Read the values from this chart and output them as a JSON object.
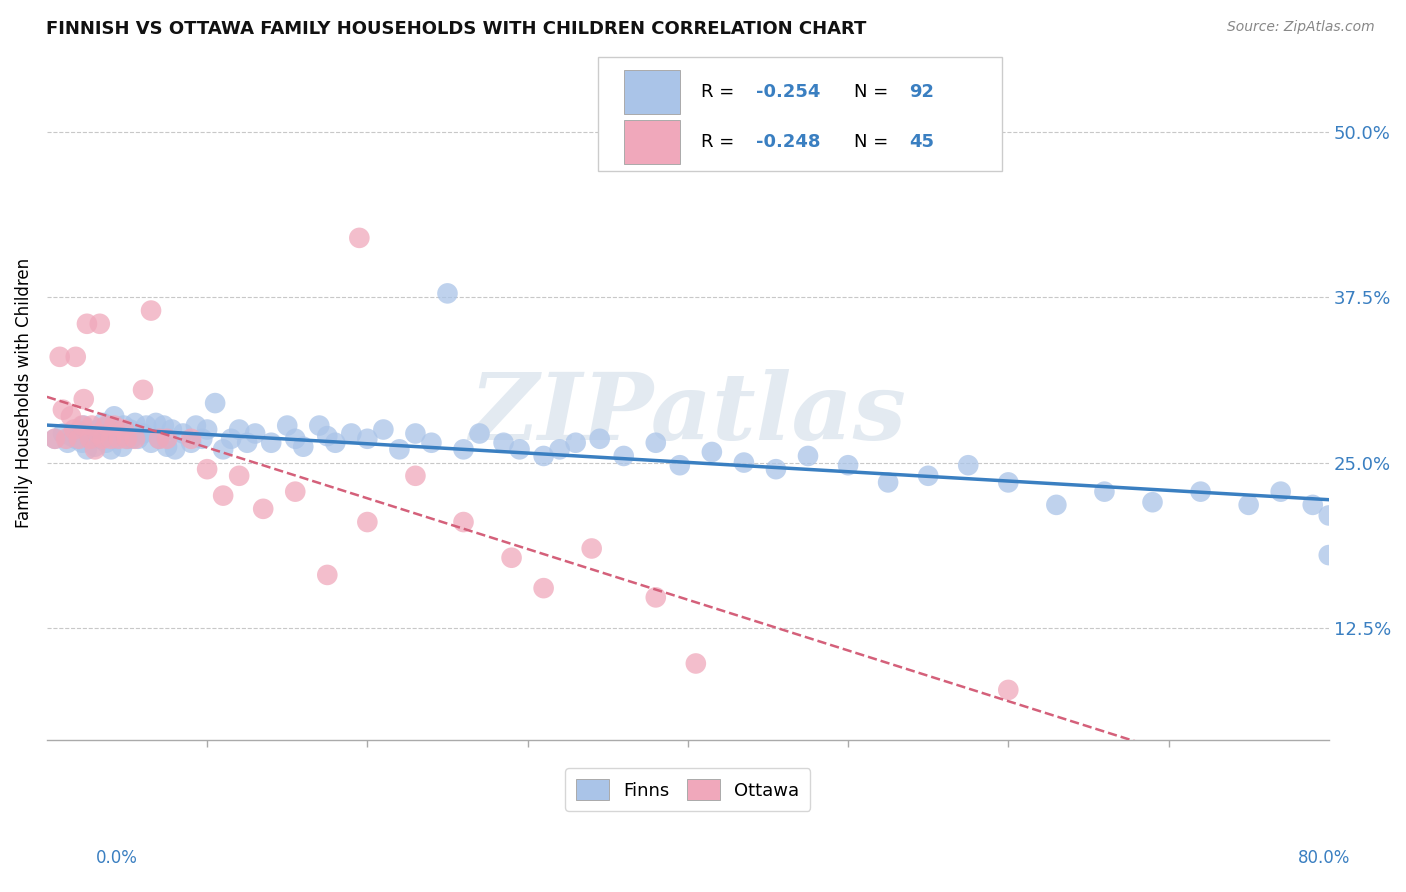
{
  "title": "FINNISH VS OTTAWA FAMILY HOUSEHOLDS WITH CHILDREN CORRELATION CHART",
  "source": "Source: ZipAtlas.com",
  "ylabel": "Family Households with Children",
  "yticks": [
    0.125,
    0.25,
    0.375,
    0.5
  ],
  "ytick_labels": [
    "12.5%",
    "25.0%",
    "37.5%",
    "50.0%"
  ],
  "xlim": [
    0.0,
    0.8
  ],
  "ylim": [
    0.04,
    0.565
  ],
  "finns_R": -0.254,
  "finns_N": 92,
  "ottawa_R": -0.248,
  "ottawa_N": 45,
  "finns_color": "#aac4e8",
  "ottawa_color": "#f0a8bb",
  "finns_line_color": "#3a7fc1",
  "ottawa_line_color": "#d4607a",
  "background_color": "#ffffff",
  "grid_color": "#c8c8c8",
  "watermark": "ZIPatlas",
  "legend_finns_label": "Finns",
  "legend_ottawa_label": "Ottawa",
  "finns_x": [
    0.005,
    0.01,
    0.013,
    0.015,
    0.018,
    0.02,
    0.022,
    0.023,
    0.025,
    0.027,
    0.028,
    0.03,
    0.032,
    0.033,
    0.035,
    0.037,
    0.038,
    0.04,
    0.04,
    0.042,
    0.043,
    0.045,
    0.047,
    0.048,
    0.05,
    0.052,
    0.053,
    0.055,
    0.057,
    0.06,
    0.062,
    0.065,
    0.068,
    0.07,
    0.073,
    0.075,
    0.078,
    0.08,
    0.085,
    0.09,
    0.093,
    0.097,
    0.1,
    0.105,
    0.11,
    0.115,
    0.12,
    0.125,
    0.13,
    0.14,
    0.15,
    0.155,
    0.16,
    0.17,
    0.175,
    0.18,
    0.19,
    0.2,
    0.21,
    0.22,
    0.23,
    0.24,
    0.25,
    0.26,
    0.27,
    0.285,
    0.295,
    0.31,
    0.32,
    0.33,
    0.345,
    0.36,
    0.38,
    0.395,
    0.415,
    0.435,
    0.455,
    0.475,
    0.5,
    0.525,
    0.55,
    0.575,
    0.6,
    0.63,
    0.66,
    0.69,
    0.72,
    0.75,
    0.77,
    0.79,
    0.8,
    0.8
  ],
  "finns_y": [
    0.268,
    0.272,
    0.265,
    0.27,
    0.268,
    0.274,
    0.265,
    0.278,
    0.26,
    0.272,
    0.268,
    0.262,
    0.275,
    0.268,
    0.28,
    0.265,
    0.278,
    0.27,
    0.26,
    0.285,
    0.268,
    0.275,
    0.262,
    0.278,
    0.268,
    0.275,
    0.268,
    0.28,
    0.268,
    0.272,
    0.278,
    0.265,
    0.28,
    0.268,
    0.278,
    0.262,
    0.275,
    0.26,
    0.272,
    0.265,
    0.278,
    0.268,
    0.275,
    0.295,
    0.26,
    0.268,
    0.275,
    0.265,
    0.272,
    0.265,
    0.278,
    0.268,
    0.262,
    0.278,
    0.27,
    0.265,
    0.272,
    0.268,
    0.275,
    0.26,
    0.272,
    0.265,
    0.378,
    0.26,
    0.272,
    0.265,
    0.26,
    0.255,
    0.26,
    0.265,
    0.268,
    0.255,
    0.265,
    0.248,
    0.258,
    0.25,
    0.245,
    0.255,
    0.248,
    0.235,
    0.24,
    0.248,
    0.235,
    0.218,
    0.228,
    0.22,
    0.228,
    0.218,
    0.228,
    0.218,
    0.18,
    0.21
  ],
  "ottawa_x": [
    0.005,
    0.008,
    0.01,
    0.012,
    0.015,
    0.017,
    0.018,
    0.02,
    0.022,
    0.023,
    0.025,
    0.027,
    0.028,
    0.03,
    0.032,
    0.033,
    0.035,
    0.037,
    0.04,
    0.042,
    0.045,
    0.048,
    0.05,
    0.055,
    0.06,
    0.065,
    0.07,
    0.075,
    0.09,
    0.1,
    0.11,
    0.12,
    0.135,
    0.155,
    0.175,
    0.2,
    0.23,
    0.195,
    0.26,
    0.29,
    0.31,
    0.34,
    0.38,
    0.405,
    0.6
  ],
  "ottawa_y": [
    0.268,
    0.33,
    0.29,
    0.268,
    0.285,
    0.275,
    0.33,
    0.268,
    0.278,
    0.298,
    0.355,
    0.268,
    0.278,
    0.26,
    0.272,
    0.355,
    0.268,
    0.278,
    0.268,
    0.278,
    0.268,
    0.275,
    0.268,
    0.268,
    0.305,
    0.365,
    0.268,
    0.268,
    0.268,
    0.245,
    0.225,
    0.24,
    0.215,
    0.228,
    0.165,
    0.205,
    0.24,
    0.42,
    0.205,
    0.178,
    0.155,
    0.185,
    0.148,
    0.098,
    0.078
  ]
}
